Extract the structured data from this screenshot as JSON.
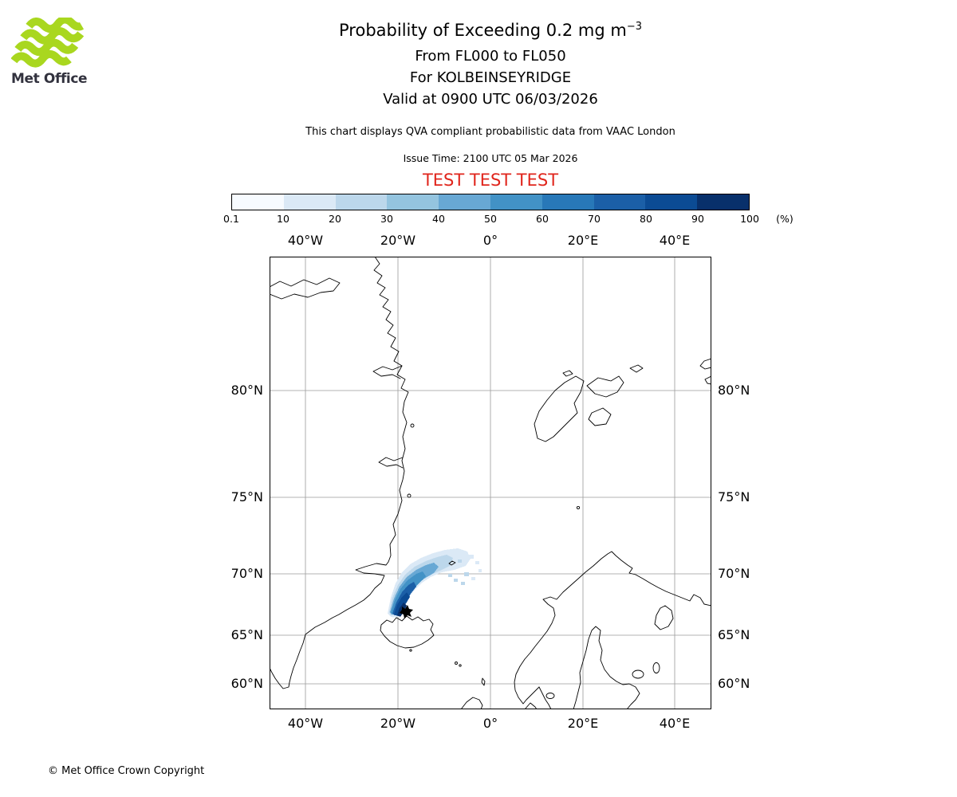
{
  "header": {
    "logo_text": "Met Office",
    "title_main": "Probability of Exceeding 0.2 mg m",
    "title_sup": "−3",
    "subtitle_lines": [
      "From FL000 to FL050",
      "For KOLBEINSEYRIDGE",
      "Valid at 0900 UTC 06/03/2026"
    ],
    "qva_note": "This chart displays QVA compliant probabilistic data from VAAC London",
    "issue_time": "Issue Time: 2100 UTC 05 Mar 2026",
    "test_banner": "TEST TEST TEST"
  },
  "colorbar": {
    "ticks": [
      "0.1",
      "10",
      "20",
      "30",
      "40",
      "50",
      "60",
      "70",
      "80",
      "90",
      "100"
    ],
    "unit": "(%)",
    "colors": [
      "#f7fbff",
      "#dbe9f6",
      "#bcd7eb",
      "#94c4df",
      "#68a8d4",
      "#4292c6",
      "#2878b8",
      "#1b5fa7",
      "#0b4b94",
      "#08306b"
    ]
  },
  "map": {
    "lon_labels": [
      "40°W",
      "20°W",
      "0°",
      "20°E",
      "40°E"
    ],
    "lat_labels": [
      "80°N",
      "75°N",
      "70°N",
      "65°N",
      "60°N"
    ]
  },
  "footer": {
    "copyright": "© Met Office Crown Copyright"
  },
  "colors": {
    "test_red": "#e0251c",
    "logo_green": "#a9d71f",
    "logo_text": "#32323e",
    "grid_gray": "#9a9a9a"
  },
  "chart_data": {
    "type": "heatmap",
    "title": "Probability of Exceeding 0.2 mg m-3",
    "flight_levels": "FL000 to FL050",
    "volcano": "KOLBEINSEYRIDGE",
    "valid_time": "0900 UTC 06/03/2026",
    "issue_time": "2100 UTC 05 Mar 2026",
    "source_note": "QVA compliant probabilistic data from VAAC London",
    "units": "%",
    "scale_breaks_pct": [
      0.1,
      10,
      20,
      30,
      40,
      50,
      60,
      70,
      80,
      90,
      100
    ],
    "legend_position": "top",
    "grid": "on",
    "map_extent": {
      "lon_range": [
        -48,
        48
      ],
      "lat_range": [
        57.5,
        84.5
      ],
      "projection": "mercator"
    },
    "lon_gridlines_deg": [
      -40,
      -20,
      0,
      20,
      40
    ],
    "lat_gridlines_deg": [
      60,
      65,
      70,
      75,
      80
    ],
    "source_location": {
      "name": "KOLBEINSEYRIDGE",
      "lat": 66.7,
      "lon": -18.7
    },
    "plume": {
      "description": "Ash-probability plume extending northeast from Kolbeinsey Ridge north of Iceland",
      "approx_bounds": {
        "lon_range": [
          -24,
          -4
        ],
        "lat_range": [
          67,
          72
        ]
      },
      "max_probability_pct": 100,
      "max_location": {
        "lat": 68.5,
        "lon": -20.5
      },
      "gradient": "highest probabilities (dark blue, 80-100%) near source; light blue (0.1-20%) fringe spreading ENE"
    }
  }
}
